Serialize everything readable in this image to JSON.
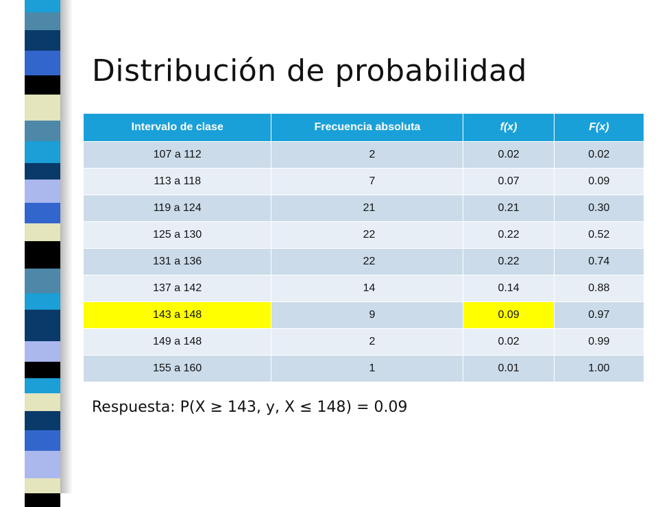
{
  "title": "Distribución de probabilidad",
  "table": {
    "headers": [
      "Intervalo de clase",
      "Frecuencia absoluta",
      "f(x)",
      "F(x)"
    ],
    "rows": [
      {
        "interval": "107 a 112",
        "freq": "2",
        "fx": "0.02",
        "Fx": "0.02"
      },
      {
        "interval": "113 a 118",
        "freq": "7",
        "fx": "0.07",
        "Fx": "0.09"
      },
      {
        "interval": "119 a 124",
        "freq": "21",
        "fx": "0.21",
        "Fx": "0.30"
      },
      {
        "interval": "125 a 130",
        "freq": "22",
        "fx": "0.22",
        "Fx": "0.52"
      },
      {
        "interval": "131 a 136",
        "freq": "22",
        "fx": "0.22",
        "Fx": "0.74"
      },
      {
        "interval": "137 a 142",
        "freq": "14",
        "fx": "0.14",
        "Fx": "0.88"
      },
      {
        "interval": "143 a 148",
        "freq": "9",
        "fx": "0.09",
        "Fx": "0.97"
      },
      {
        "interval": "149 a 148",
        "freq": "2",
        "fx": "0.02",
        "Fx": "0.99"
      },
      {
        "interval": "155 a 160",
        "freq": "1",
        "fx": "0.01",
        "Fx": "1.00"
      }
    ]
  },
  "answer": "Respuesta: P(X ≥ 143, y, X ≤ 148) = 0.09",
  "colors": {
    "header": "#1aa0d8",
    "row_odd": "#cbdbe9",
    "row_even": "#e7eef6",
    "highlight": "#ffff00"
  }
}
